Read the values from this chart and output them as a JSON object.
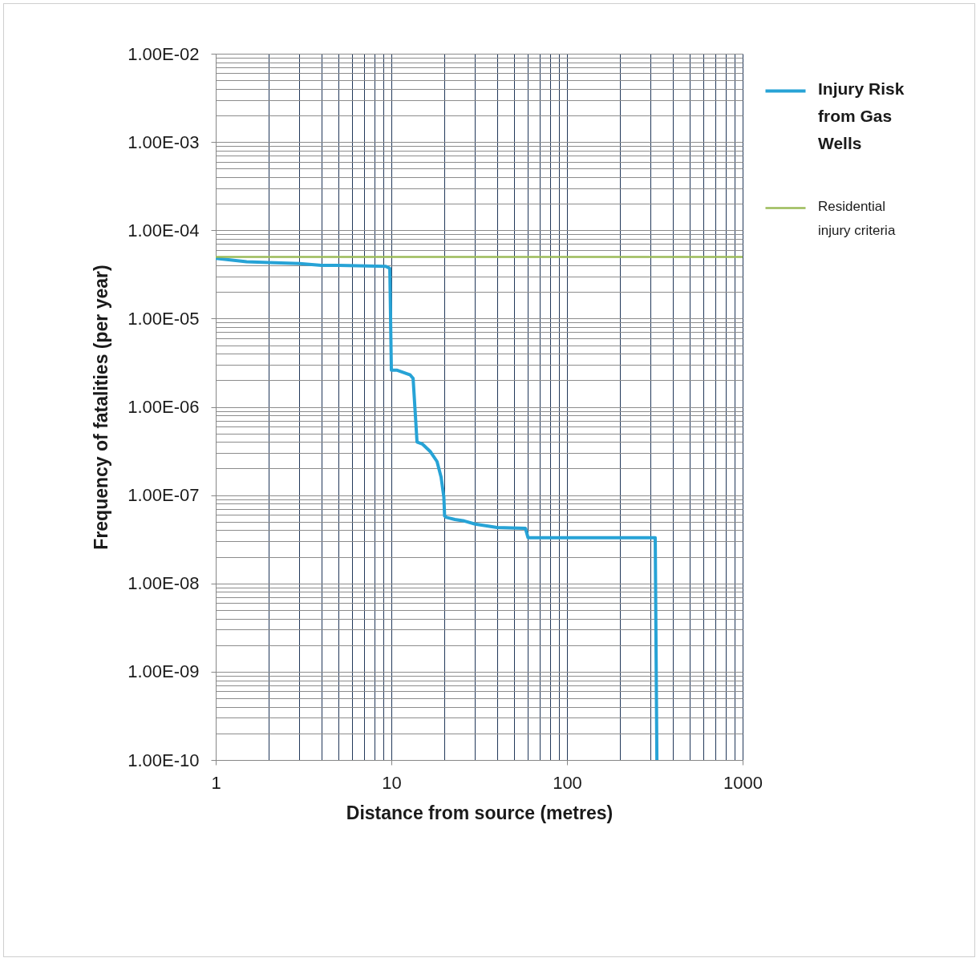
{
  "chart_data": {
    "type": "line",
    "xlabel": "Distance from source (metres)",
    "ylabel": "Frequency of fatalities (per year)",
    "log": "xy",
    "grid": true,
    "legend": "top right",
    "xlim": [
      1,
      1000
    ],
    "xticks": [
      1,
      {
        "value": 2,
        "label": null
      },
      {
        "value": 3,
        "label": null
      },
      {
        "value": 4,
        "label": null
      },
      {
        "value": 5,
        "label": null
      },
      {
        "value": 6,
        "label": null
      },
      {
        "value": 7,
        "label": null
      },
      {
        "value": 8,
        "label": null
      },
      {
        "value": 9,
        "label": null
      },
      10,
      {
        "value": 20,
        "label": null
      },
      {
        "value": 30,
        "label": null
      },
      {
        "value": 40,
        "label": null
      },
      {
        "value": 50,
        "label": null
      },
      {
        "value": 60,
        "label": null
      },
      {
        "value": 70,
        "label": null
      },
      {
        "value": 80,
        "label": null
      },
      {
        "value": 90,
        "label": null
      },
      100,
      {
        "value": 200,
        "label": null
      },
      {
        "value": 300,
        "label": null
      },
      {
        "value": 400,
        "label": null
      },
      {
        "value": 500,
        "label": null
      },
      {
        "value": 600,
        "label": null
      },
      {
        "value": 700,
        "label": null
      },
      {
        "value": 800,
        "label": null
      },
      {
        "value": 900,
        "label": null
      },
      1000
    ],
    "ylim": [
      1e-10,
      0.01
    ],
    "yticks": [
      {
        "value": 1e-10,
        "label": "1.00E-10"
      },
      {
        "value": 2e-10,
        "label": null
      },
      {
        "value": 3e-10,
        "label": null
      },
      {
        "value": 4e-10,
        "label": null
      },
      {
        "value": 5e-10,
        "label": null
      },
      {
        "value": 6e-10,
        "label": null
      },
      {
        "value": 7e-10,
        "label": null
      },
      {
        "value": 8e-10,
        "label": null
      },
      {
        "value": 9e-10,
        "label": null
      },
      {
        "value": 1e-09,
        "label": "1.00E-09"
      },
      {
        "value": 2e-09,
        "label": null
      },
      {
        "value": 3e-09,
        "label": null
      },
      {
        "value": 4e-09,
        "label": null
      },
      {
        "value": 5e-09,
        "label": null
      },
      {
        "value": 6e-09,
        "label": null
      },
      {
        "value": 7e-09,
        "label": null
      },
      {
        "value": 8e-09,
        "label": null
      },
      {
        "value": 9e-09,
        "label": null
      },
      {
        "value": 1e-08,
        "label": "1.00E-08"
      },
      {
        "value": 2e-08,
        "label": null
      },
      {
        "value": 3e-08,
        "label": null
      },
      {
        "value": 4e-08,
        "label": null
      },
      {
        "value": 5e-08,
        "label": null
      },
      {
        "value": 6e-08,
        "label": null
      },
      {
        "value": 7e-08,
        "label": null
      },
      {
        "value": 8e-08,
        "label": null
      },
      {
        "value": 9e-08,
        "label": null
      },
      {
        "value": 1e-07,
        "label": "1.00E-07"
      },
      {
        "value": 2e-07,
        "label": null
      },
      {
        "value": 3e-07,
        "label": null
      },
      {
        "value": 4e-07,
        "label": null
      },
      {
        "value": 5e-07,
        "label": null
      },
      {
        "value": 6e-07,
        "label": null
      },
      {
        "value": 7e-07,
        "label": null
      },
      {
        "value": 8e-07,
        "label": null
      },
      {
        "value": 9e-07,
        "label": null
      },
      {
        "value": 1e-06,
        "label": "1.00E-06"
      },
      {
        "value": 2e-06,
        "label": null
      },
      {
        "value": 3e-06,
        "label": null
      },
      {
        "value": 4e-06,
        "label": null
      },
      {
        "value": 5e-06,
        "label": null
      },
      {
        "value": 6e-06,
        "label": null
      },
      {
        "value": 7e-06,
        "label": null
      },
      {
        "value": 8e-06,
        "label": null
      },
      {
        "value": 9e-06,
        "label": null
      },
      {
        "value": 1e-05,
        "label": "1.00E-05"
      },
      {
        "value": 2e-05,
        "label": null
      },
      {
        "value": 3e-05,
        "label": null
      },
      {
        "value": 4e-05,
        "label": null
      },
      {
        "value": 5e-05,
        "label": null
      },
      {
        "value": 6e-05,
        "label": null
      },
      {
        "value": 7e-05,
        "label": null
      },
      {
        "value": 8e-05,
        "label": null
      },
      {
        "value": 9e-05,
        "label": null
      },
      {
        "value": 0.0001,
        "label": "1.00E-04"
      },
      {
        "value": 0.0002,
        "label": null
      },
      {
        "value": 0.0003,
        "label": null
      },
      {
        "value": 0.0004,
        "label": null
      },
      {
        "value": 0.0005,
        "label": null
      },
      {
        "value": 0.0006,
        "label": null
      },
      {
        "value": 0.0007,
        "label": null
      },
      {
        "value": 0.0008,
        "label": null
      },
      {
        "value": 0.0009,
        "label": null
      },
      {
        "value": 0.001,
        "label": "1.00E-03"
      },
      {
        "value": 0.002,
        "label": null
      },
      {
        "value": 0.003,
        "label": null
      },
      {
        "value": 0.004,
        "label": null
      },
      {
        "value": 0.005,
        "label": null
      },
      {
        "value": 0.006,
        "label": null
      },
      {
        "value": 0.007,
        "label": null
      },
      {
        "value": 0.008,
        "label": null
      },
      {
        "value": 0.009,
        "label": null
      },
      {
        "value": 0.01,
        "label": "1.00E-02"
      }
    ],
    "series": [
      {
        "name": "Injury Risk from Gas Wells",
        "color": "#27a3d6",
        "x": [
          1,
          1.5,
          2,
          3,
          4,
          5,
          9.3,
          9.8,
          10,
          10.8,
          12.8,
          13.3,
          14,
          15,
          16.7,
          18.2,
          19.2,
          19.9,
          20.1,
          20.6,
          23,
          26,
          30,
          40,
          58,
          60,
          100,
          318,
          325
        ],
        "values": [
          4.8e-05,
          4.4e-05,
          4.3e-05,
          4.2e-05,
          4e-05,
          4e-05,
          3.9e-05,
          3.7e-05,
          2.6e-06,
          2.6e-06,
          2.3e-06,
          2.1e-06,
          4e-07,
          3.8e-07,
          3.1e-07,
          2.4e-07,
          1.6e-07,
          9.5e-08,
          5.8e-08,
          5.6e-08,
          5.3e-08,
          5.1e-08,
          4.7e-08,
          4.3e-08,
          4.2e-08,
          3.3e-08,
          3.3e-08,
          3.3e-08,
          1e-10
        ]
      },
      {
        "name": "Residential injury criteria",
        "color": "#9bbb59",
        "x": [
          1,
          1000
        ],
        "values": [
          5e-05,
          5e-05
        ]
      }
    ]
  }
}
